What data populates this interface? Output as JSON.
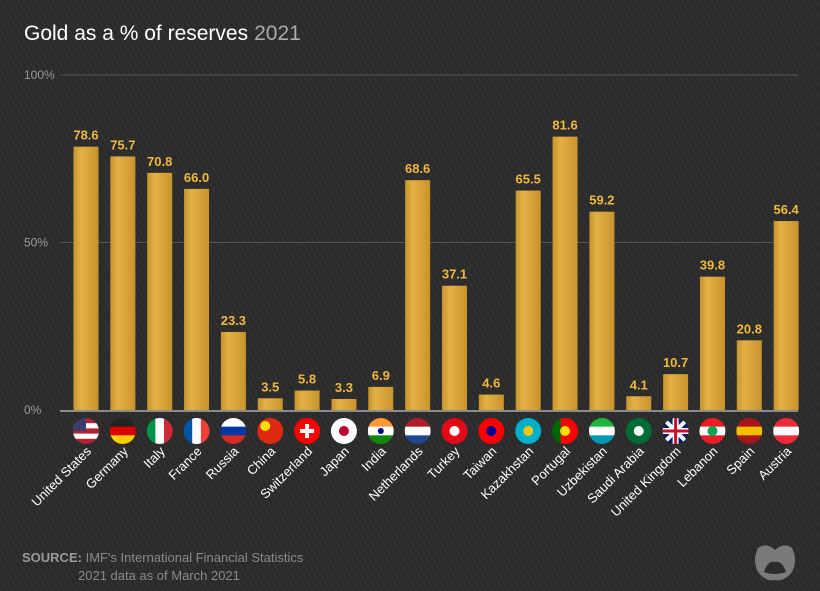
{
  "title": "Gold as a % of reserves",
  "year": "2021",
  "source_label": "SOURCE:",
  "source_line1": "IMF's International Financial Statistics",
  "source_line2": "2021 data as of March 2021",
  "colors": {
    "bar": "#e2b145",
    "bar_dark": "#c8932c",
    "label": "#f0b93c",
    "axis": "#9a9a9a",
    "grid": "#555555"
  },
  "chart_data": {
    "type": "bar",
    "title": "Gold as a % of reserves",
    "ylim": [
      0,
      100
    ],
    "yticks": [
      {
        "v": 0,
        "label": "0%"
      },
      {
        "v": 50,
        "label": "50%"
      },
      {
        "v": 100,
        "label": "100%"
      }
    ],
    "categories": [
      "United States",
      "Germany",
      "Italy",
      "France",
      "Russia",
      "China",
      "Switzerland",
      "Japan",
      "India",
      "Netherlands",
      "Turkey",
      "Taiwan",
      "Kazakhstan",
      "Portugal",
      "Uzbekistan",
      "Saudi Arabia",
      "United Kingdom",
      "Lebanon",
      "Spain",
      "Austria"
    ],
    "values": [
      78.6,
      75.7,
      70.8,
      66.0,
      23.3,
      3.5,
      5.8,
      3.3,
      6.9,
      68.6,
      37.1,
      4.6,
      65.5,
      81.6,
      59.2,
      4.1,
      10.7,
      39.8,
      20.8,
      56.4
    ],
    "labels": [
      "78.6",
      "75.7",
      "70.8",
      "66.0",
      "23.3",
      "3.5",
      "5.8",
      "3.3",
      "6.9",
      "68.6",
      "37.1",
      "4.6",
      "65.5",
      "81.6",
      "59.2",
      "4.1",
      "10.7",
      "39.8",
      "20.8",
      "56.4"
    ]
  },
  "flags": [
    {
      "o": "h",
      "c": [
        "#b22234",
        "#ffffff",
        "#b22234",
        "#ffffff",
        "#b22234"
      ],
      "m": "#3c3b6e"
    },
    {
      "o": "h",
      "c": [
        "#222222",
        "#dd0000",
        "#ffce00"
      ]
    },
    {
      "o": "v",
      "c": [
        "#009246",
        "#ffffff",
        "#ce2b37"
      ]
    },
    {
      "o": "v",
      "c": [
        "#0055a4",
        "#ffffff",
        "#ef4135"
      ]
    },
    {
      "o": "h",
      "c": [
        "#ffffff",
        "#0039a6",
        "#d52b1e"
      ]
    },
    {
      "o": "h",
      "c": [
        "#de2910"
      ],
      "m": "#ffde00"
    },
    {
      "o": "h",
      "c": [
        "#ff0000"
      ],
      "m": "#ffffff"
    },
    {
      "o": "h",
      "c": [
        "#ffffff"
      ],
      "m": "#bc002d"
    },
    {
      "o": "h",
      "c": [
        "#ff9933",
        "#ffffff",
        "#138808"
      ],
      "m": "#000080"
    },
    {
      "o": "h",
      "c": [
        "#ae1c28",
        "#ffffff",
        "#21468b"
      ]
    },
    {
      "o": "h",
      "c": [
        "#e30a17"
      ],
      "m": "#ffffff"
    },
    {
      "o": "h",
      "c": [
        "#fe0000"
      ],
      "m": "#000095"
    },
    {
      "o": "h",
      "c": [
        "#00afca"
      ],
      "m": "#fec50c"
    },
    {
      "o": "v",
      "c": [
        "#006600",
        "#ff0000",
        "#ff0000"
      ],
      "m": "#ffe000"
    },
    {
      "o": "h",
      "c": [
        "#1eb53a",
        "#ffffff",
        "#0099b5"
      ]
    },
    {
      "o": "h",
      "c": [
        "#006c35"
      ],
      "m": "#ffffff"
    },
    {
      "o": "h",
      "c": [
        "#012169"
      ],
      "m": "#c8102e"
    },
    {
      "o": "h",
      "c": [
        "#ed1c24",
        "#ffffff",
        "#ed1c24"
      ],
      "m": "#00a651"
    },
    {
      "o": "h",
      "c": [
        "#aa151b",
        "#f1bf00",
        "#aa151b"
      ]
    },
    {
      "o": "h",
      "c": [
        "#ed2939",
        "#ffffff",
        "#ed2939"
      ]
    }
  ]
}
